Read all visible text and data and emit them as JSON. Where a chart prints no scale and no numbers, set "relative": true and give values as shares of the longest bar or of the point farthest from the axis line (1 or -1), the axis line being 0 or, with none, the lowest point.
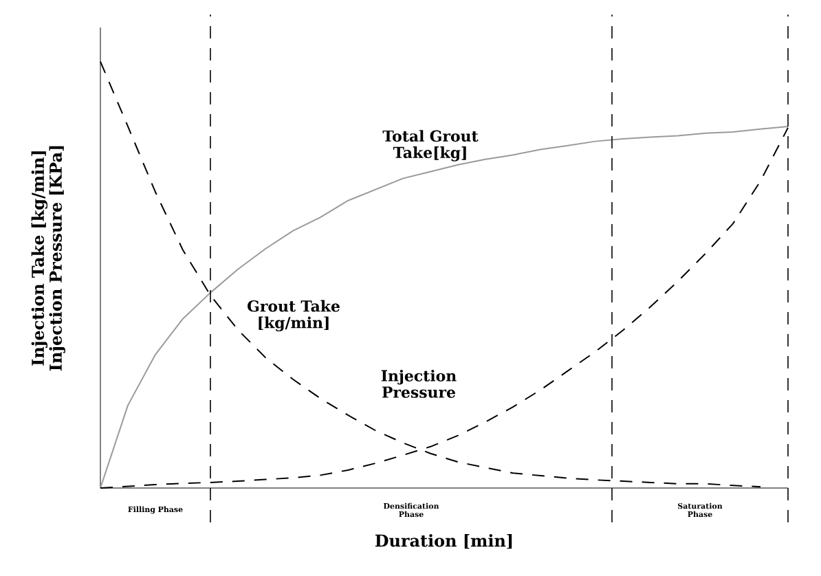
{
  "chart_data": {
    "type": "line",
    "relative": true,
    "xlabel": "Duration [min]",
    "ylabel": "Injection Take [kg/min] Injection Pressure [KPa]",
    "tick_labels": false,
    "marker": "none",
    "categories": [
      null,
      null,
      null,
      null,
      null,
      null,
      null,
      null,
      null,
      null,
      null,
      null,
      null,
      null,
      null,
      null,
      null,
      null,
      null,
      null,
      null,
      null,
      null,
      null,
      null,
      null
    ],
    "series": [
      {
        "name": "Total Grout Take[kg]",
        "color": "#9a9a9a",
        "line_style": "solid",
        "values": [
          0,
          0.194,
          0.313,
          0.397,
          0.458,
          0.513,
          0.561,
          0.603,
          0.635,
          0.674,
          0.7,
          0.726,
          0.742,
          0.758,
          0.771,
          0.781,
          0.794,
          0.803,
          0.813,
          0.819,
          0.823,
          0.826,
          0.832,
          0.835,
          0.842,
          0.848
        ]
      },
      {
        "name": "Grout Take [kg/min]",
        "color": "#000000",
        "line_style": "dashed",
        "values": [
          1.0,
          0.848,
          0.694,
          0.558,
          0.452,
          0.371,
          0.306,
          0.255,
          0.21,
          0.171,
          0.135,
          0.106,
          0.081,
          0.061,
          0.048,
          0.035,
          0.029,
          0.023,
          0.019,
          0.016,
          0.013,
          0.01,
          0.01,
          0.006,
          0.003,
          null
        ]
      },
      {
        "name": "Injection Pressure",
        "color": "#000000",
        "line_style": "dashed",
        "values": [
          0,
          0.004,
          0.008,
          0.011,
          0.013,
          0.016,
          0.02,
          0.024,
          0.03,
          0.042,
          0.058,
          0.077,
          0.097,
          0.123,
          0.155,
          0.19,
          0.23,
          0.275,
          0.32,
          0.37,
          0.425,
          0.485,
          0.55,
          0.62,
          0.72,
          0.845
        ]
      }
    ],
    "annotations": [
      "Filling Phase",
      "Densification Phase",
      "Saturation Phase"
    ]
  }
}
